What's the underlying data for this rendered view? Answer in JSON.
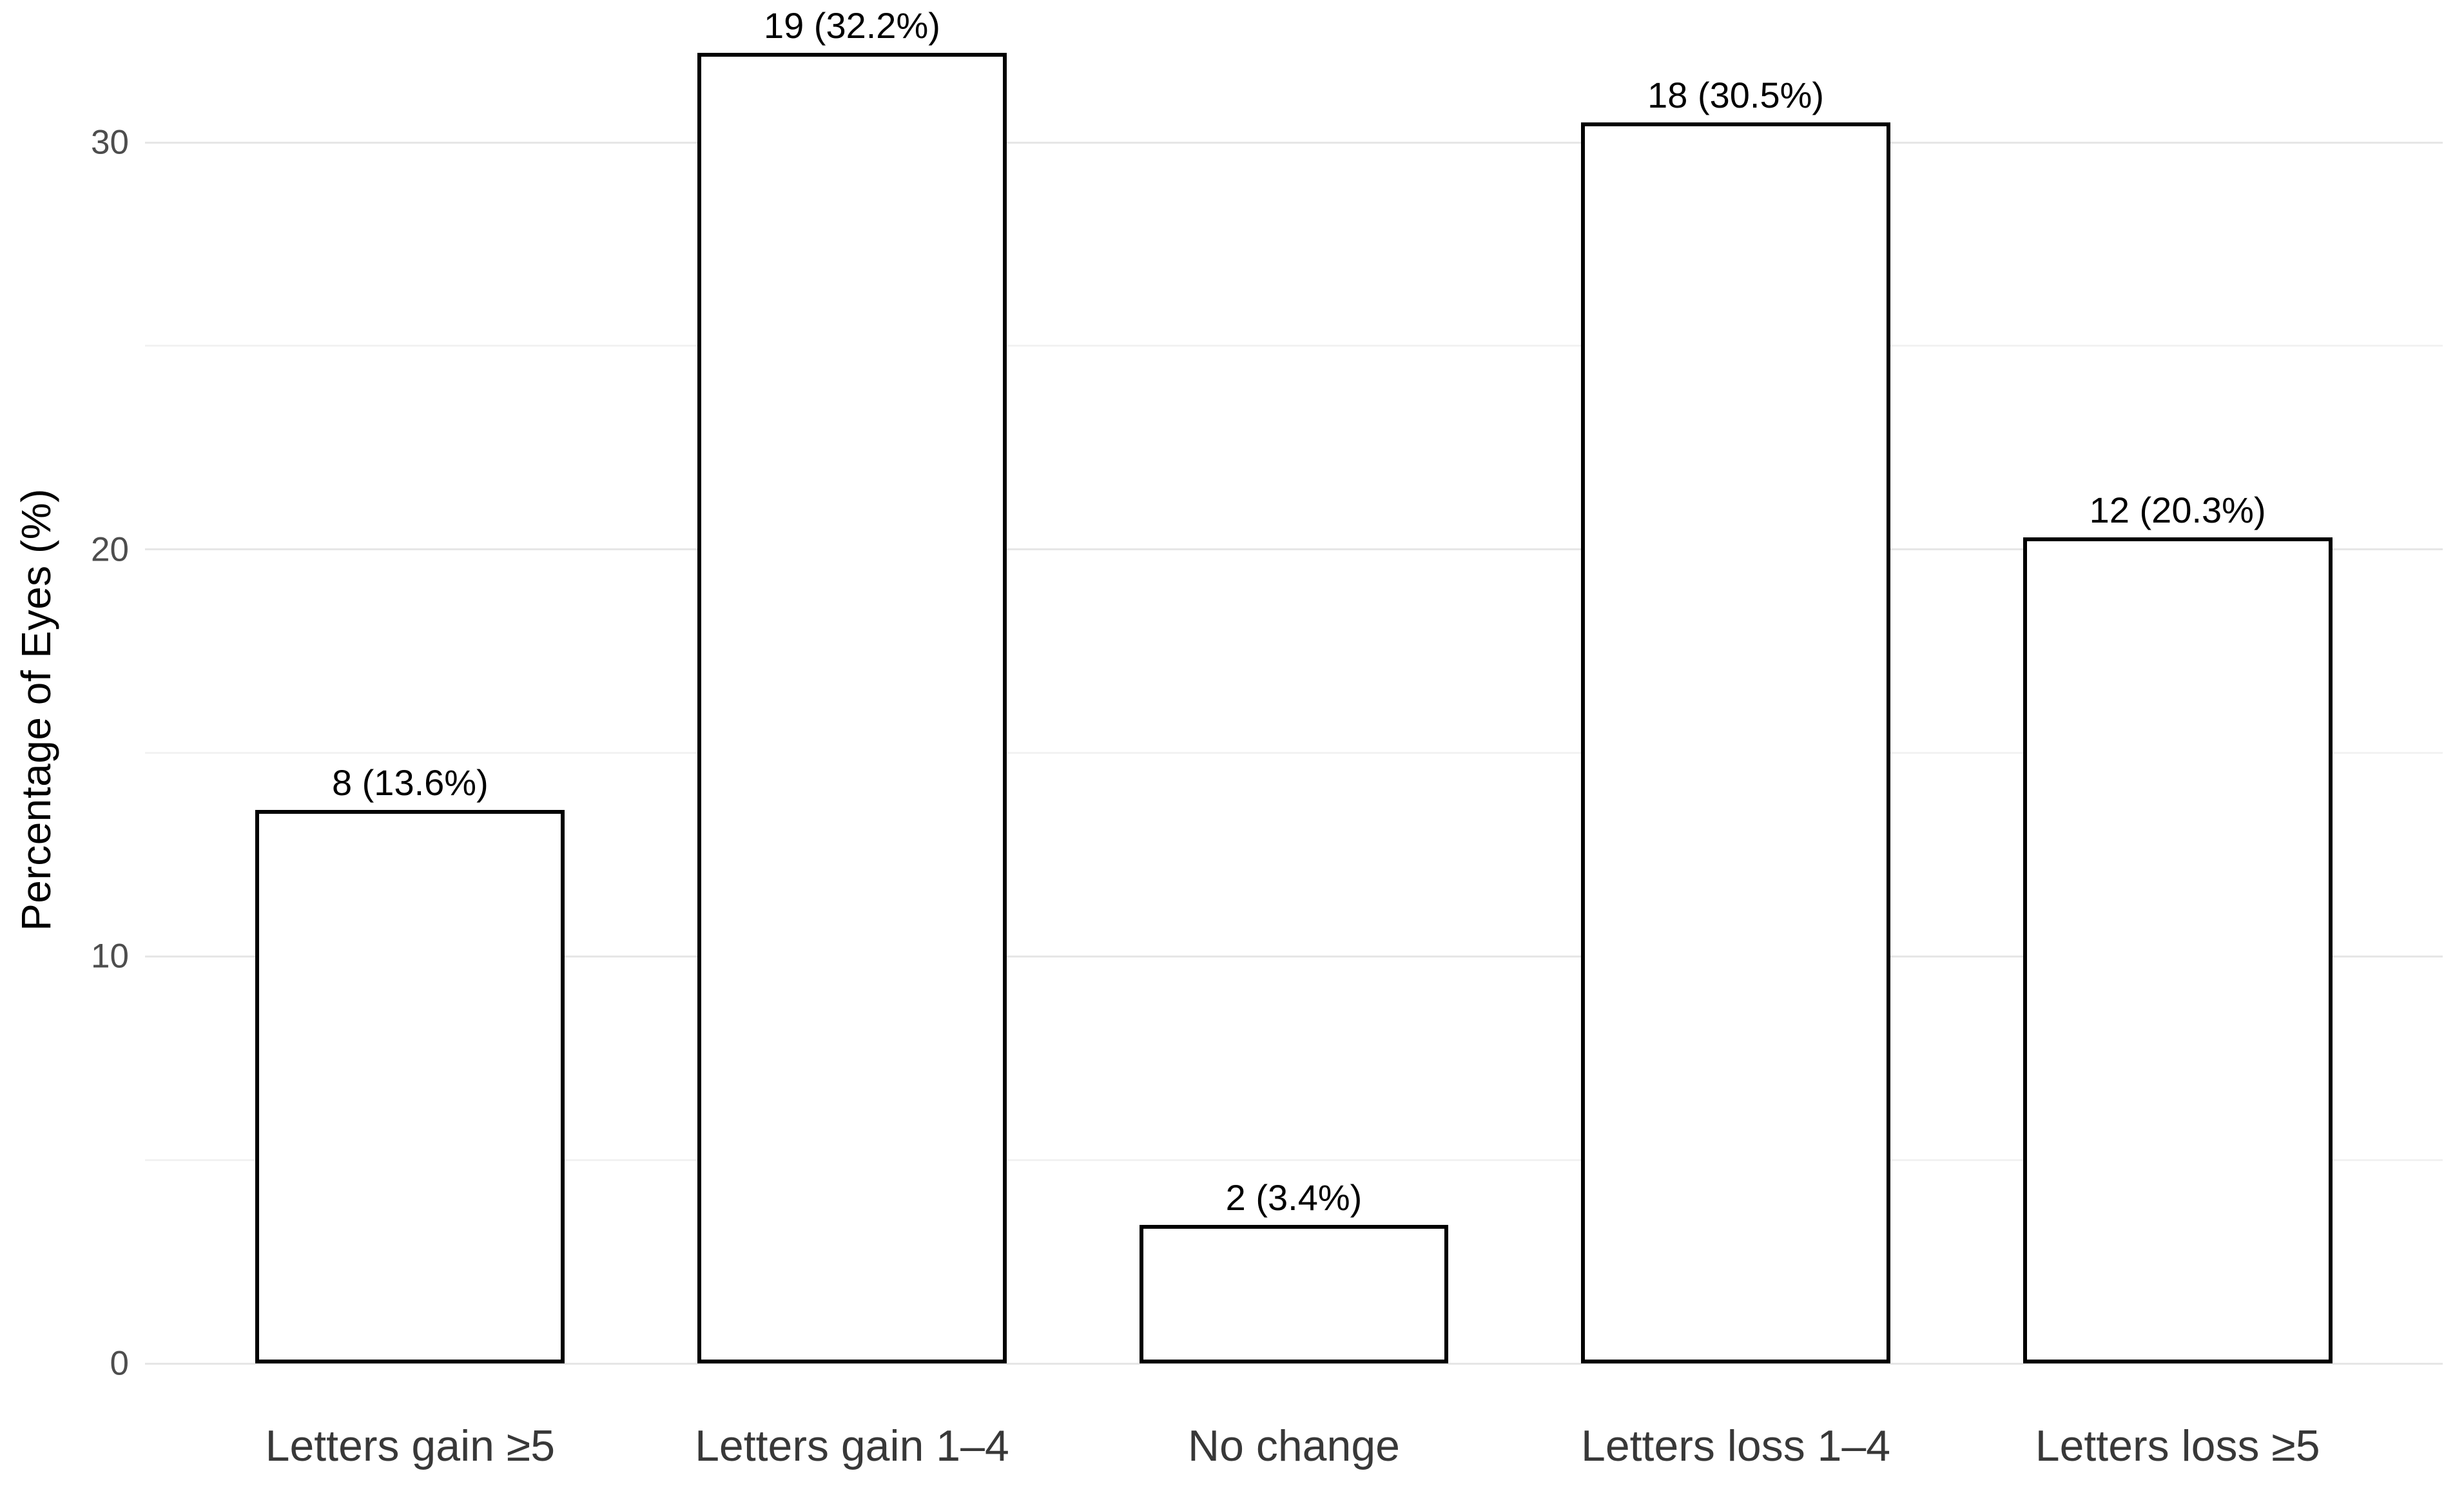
{
  "figure": {
    "background": "#ffffff"
  },
  "chart_data": {
    "type": "bar",
    "title": "",
    "xlabel": "",
    "ylabel": "Percentage of Eyes (%)",
    "categories": [
      "Letters gain ≥5",
      "Letters gain 1–4",
      "No change",
      "Letters loss 1–4",
      "Letters loss ≥5"
    ],
    "counts": [
      8,
      19,
      2,
      18,
      12
    ],
    "values": [
      13.6,
      32.2,
      3.4,
      30.5,
      20.3
    ],
    "bar_labels": [
      "8 (13.6%)",
      "19 (32.2%)",
      "2 (3.4%)",
      "18 (30.5%)",
      "12 (20.3%)"
    ],
    "ylim": [
      0,
      33.5
    ],
    "yticks": [
      0,
      10,
      20,
      30
    ],
    "ytick_labels": [
      "0",
      "10",
      "20",
      "30"
    ],
    "minor_yticks": [
      5,
      15,
      25
    ],
    "grid": "horizontal",
    "legend_position": "none",
    "bar_width_fraction": 0.7,
    "axis_span_units": 5.2,
    "colors": {
      "bar_fill": "#ffffff",
      "bar_stroke": "#000000",
      "major_grid": "#e6e6e6",
      "minor_grid": "#f2f2f2",
      "axis_tick_text": "#4d4d4d",
      "category_text": "#383838",
      "value_label_text": "#000000",
      "axis_title_text": "#000000",
      "background": "#ffffff"
    }
  }
}
